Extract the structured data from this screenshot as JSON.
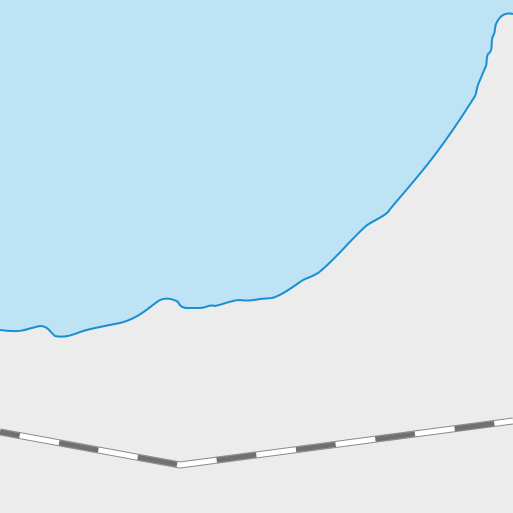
{
  "map": {
    "colors": {
      "land": "#ececec",
      "water": "#bde3f5",
      "shoreline": "#1a8fd1",
      "rail_dark": "#707070",
      "rail_light": "#ffffff"
    },
    "features": [
      "water-body",
      "shoreline",
      "railway"
    ]
  }
}
